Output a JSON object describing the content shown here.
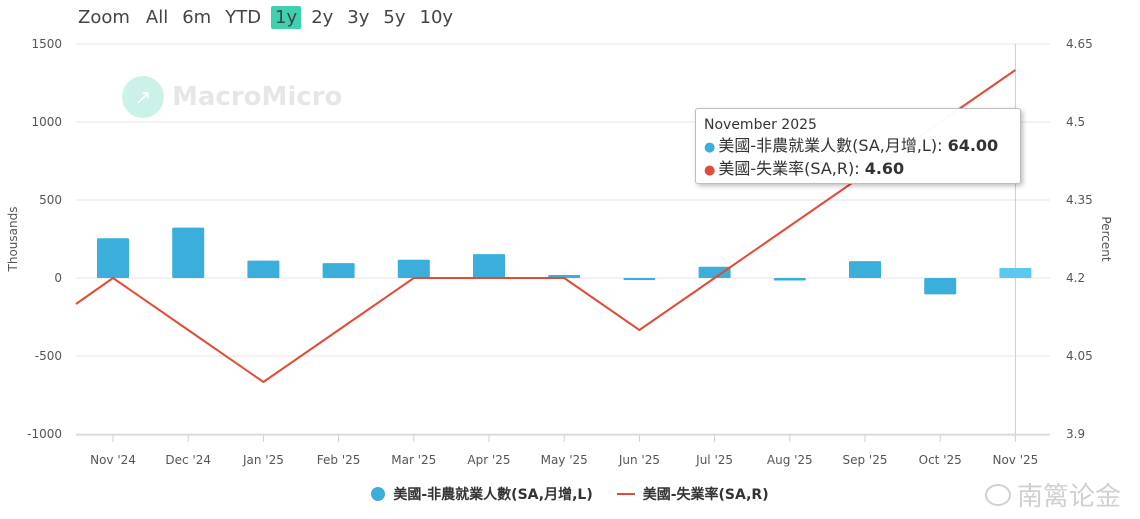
{
  "zoom": {
    "label": "Zoom",
    "options": [
      "All",
      "6m",
      "YTD",
      "1y",
      "2y",
      "3y",
      "5y",
      "10y"
    ],
    "active": "1y"
  },
  "watermark": "MacroMicro",
  "corner_mark": "南篱论金",
  "colors": {
    "bars": "#3caedb",
    "bar_highlight": "#5cc8f0",
    "line": "#e24b37",
    "zoom_active": "#3fd0b0"
  },
  "tooltip": {
    "title": "November 2025",
    "rows": [
      {
        "label": "美國-非農就業人數(SA,月增,L):",
        "value": "64.00"
      },
      {
        "label": "美國-失業率(SA,R):",
        "value": "4.60"
      }
    ]
  },
  "legend": [
    "美國-非農就業人數(SA,月增,L)",
    "美國-失業率(SA,R)"
  ],
  "chart_data": {
    "type": "bar",
    "categories": [
      "Nov '24",
      "Dec '24",
      "Jan '25",
      "Feb '25",
      "Mar '25",
      "Apr '25",
      "May '25",
      "Jun '25",
      "Jul '25",
      "Aug '25",
      "Sep '25",
      "Oct '25",
      "Nov '25"
    ],
    "series": [
      {
        "name": "美國-非農就業人數(SA,月增,L)",
        "type": "bar",
        "axis": "left",
        "values": [
          255,
          323,
          111,
          95,
          117,
          153,
          19,
          -13,
          72,
          -16,
          108,
          -105,
          64
        ]
      },
      {
        "name": "美國-失業率(SA,R)",
        "type": "line",
        "axis": "right",
        "values": [
          4.2,
          4.1,
          4.0,
          4.1,
          4.2,
          4.2,
          4.2,
          4.1,
          4.2,
          4.3,
          4.4,
          4.5,
          4.6
        ],
        "lead_in": 4.15
      }
    ],
    "ylabel_left": "Thousands",
    "ylabel_right": "Percent",
    "ylim_left": [
      -1000,
      1500
    ],
    "yticks_left": [
      "1500",
      "1000",
      "500",
      "0",
      "-500",
      "-1000"
    ],
    "ylim_right": [
      3.9,
      4.65
    ],
    "yticks_right": [
      "4.65",
      "4.5",
      "4.35",
      "4.2",
      "4.05",
      "3.9"
    ],
    "grid": true,
    "legend_position": "bottom-center"
  }
}
